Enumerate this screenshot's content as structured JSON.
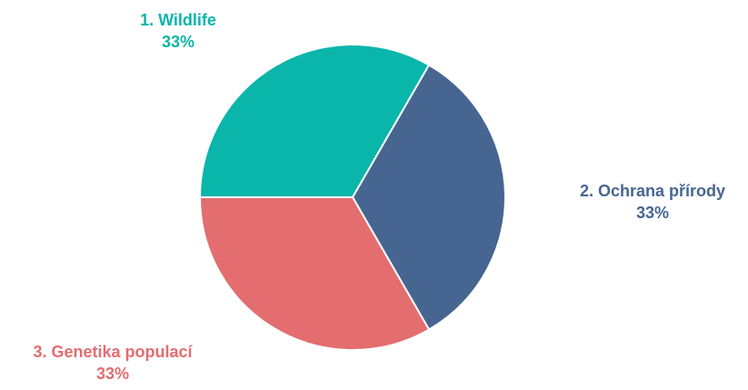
{
  "chart_data": {
    "type": "pie",
    "title": "",
    "legend": "none",
    "slices": [
      {
        "name": "1. Wildlife",
        "value": 33.33,
        "label": "33%",
        "color": "#0ab5aa"
      },
      {
        "name": "2. Ochrana přírody",
        "value": 33.33,
        "label": "33%",
        "color": "#476591"
      },
      {
        "name": "3. Genetika populací",
        "value": 33.34,
        "label": "33%",
        "color": "#e36d6f"
      }
    ],
    "start_angle_deg": -90,
    "slice_border_color": "#ffffff"
  }
}
